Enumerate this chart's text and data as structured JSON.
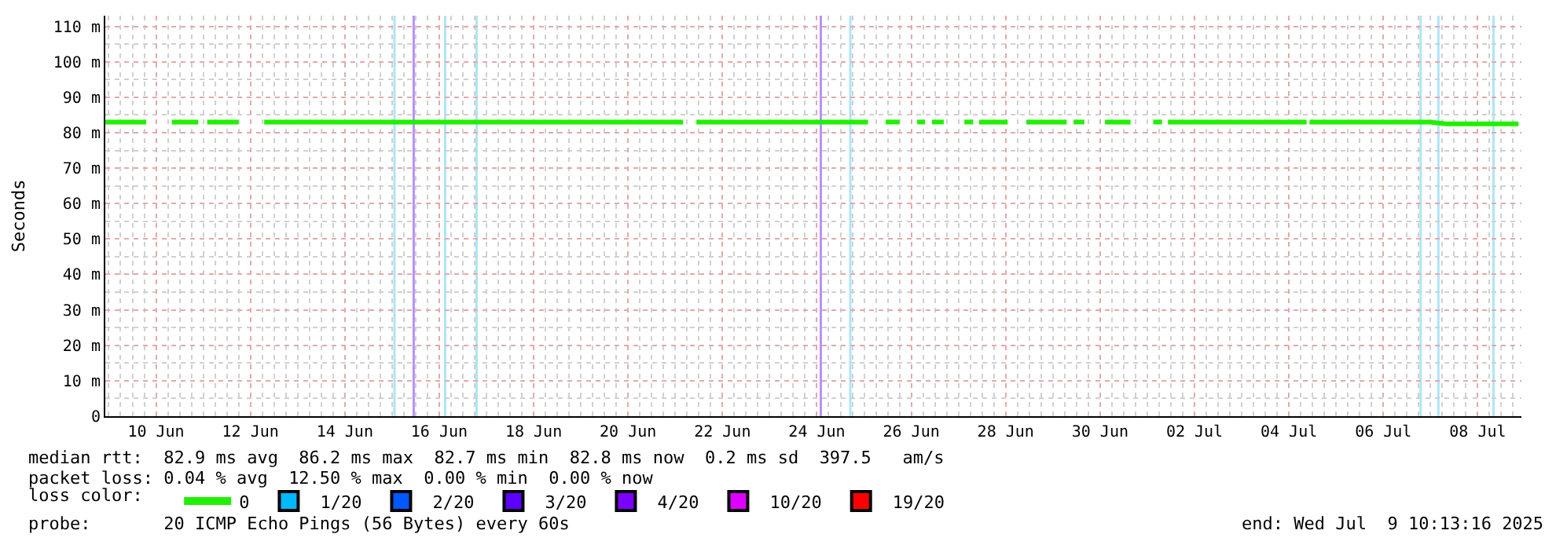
{
  "chart_data": {
    "type": "line",
    "ylabel": "Seconds",
    "xlim": [
      "2025-06-09T10:13",
      "2025-07-09T10:13"
    ],
    "xticks": [
      {
        "value": "2025-06-10T12:00",
        "label": "10 Jun"
      },
      {
        "value": "2025-06-12T12:00",
        "label": "12 Jun"
      },
      {
        "value": "2025-06-14T12:00",
        "label": "14 Jun"
      },
      {
        "value": "2025-06-16T12:00",
        "label": "16 Jun"
      },
      {
        "value": "2025-06-18T12:00",
        "label": "18 Jun"
      },
      {
        "value": "2025-06-20T12:00",
        "label": "20 Jun"
      },
      {
        "value": "2025-06-22T12:00",
        "label": "22 Jun"
      },
      {
        "value": "2025-06-24T12:00",
        "label": "24 Jun"
      },
      {
        "value": "2025-06-26T12:00",
        "label": "26 Jun"
      },
      {
        "value": "2025-06-28T12:00",
        "label": "28 Jun"
      },
      {
        "value": "2025-06-30T12:00",
        "label": "30 Jun"
      },
      {
        "value": "2025-07-02T12:00",
        "label": "02 Jul"
      },
      {
        "value": "2025-07-04T12:00",
        "label": "04 Jul"
      },
      {
        "value": "2025-07-06T12:00",
        "label": "06 Jul"
      },
      {
        "value": "2025-07-08T12:00",
        "label": "08 Jul"
      }
    ],
    "ylim": [
      0,
      113
    ],
    "yticks": [
      0,
      {
        "value": 10,
        "label": "10 m"
      },
      {
        "value": 20,
        "label": "20 m"
      },
      {
        "value": 30,
        "label": "30 m"
      },
      {
        "value": 40,
        "label": "40 m"
      },
      {
        "value": 50,
        "label": "50 m"
      },
      {
        "value": 60,
        "label": "60 m"
      },
      {
        "value": 70,
        "label": "70 m"
      },
      {
        "value": 80,
        "label": "80 m"
      },
      {
        "value": 90,
        "label": "90 m"
      },
      {
        "value": 100,
        "label": "100 m"
      },
      {
        "value": 110,
        "label": "110 m"
      }
    ],
    "grid": true,
    "legend": "bottom",
    "legend_title": "loss color:",
    "marker": "none",
    "line_style": "solid",
    "series": [
      {
        "name": "0",
        "color": "#20f000",
        "x": [
          "2025-06-09T10:15",
          "2025-06-10T07:00",
          "2025-06-10T14:00",
          "2025-06-10T20:00",
          "2025-06-11T09:30",
          "2025-06-11T12:00",
          "2025-06-11T14:00",
          "2025-06-12T06:00",
          "2025-06-12T12:00",
          "2025-06-12T19:00",
          "2025-06-21T16:00",
          "2025-06-21T20:00",
          "2025-06-21T22:45",
          "2025-06-25T14:00",
          "2025-06-25T18:00",
          "2025-06-25T23:00",
          "2025-06-26T06:00",
          "2025-06-26T12:00",
          "2025-06-26T15:00",
          "2025-06-26T19:00",
          "2025-06-26T20:00",
          "2025-06-26T22:30",
          "2025-06-27T04:30",
          "2025-06-27T10:00",
          "2025-06-27T15:00",
          "2025-06-27T19:30",
          "2025-06-27T20:00",
          "2025-06-27T22:30",
          "2025-06-28T13:00",
          "2025-06-28T18:00",
          "2025-06-28T22:30",
          "2025-06-29T19:00",
          "2025-06-29T21:00",
          "2025-06-29T22:30",
          "2025-06-30T04:00",
          "2025-06-30T10:00",
          "2025-06-30T14:30",
          "2025-07-01T03:30",
          "2025-07-01T10:00",
          "2025-07-01T15:00",
          "2025-07-01T19:30",
          "2025-07-01T20:00",
          "2025-07-01T22:30",
          "2025-07-04T21:00",
          "2025-07-04T22:00",
          "2025-07-04T22:30",
          "2025-07-07T12:00",
          "2025-07-07T20:00",
          "2025-07-09T08:45"
        ],
        "values": [
          83,
          83,
          null,
          83,
          83,
          null,
          83,
          83,
          null,
          83,
          83,
          null,
          83,
          83,
          null,
          83,
          83,
          null,
          83,
          83,
          null,
          83,
          83,
          null,
          83,
          83,
          null,
          83,
          83,
          null,
          83,
          83,
          null,
          83,
          83,
          null,
          83,
          83,
          null,
          83,
          83,
          null,
          83,
          83,
          null,
          83,
          83,
          82.5,
          82.5
        ]
      },
      {
        "name": "1/20",
        "color": "#00b8ff"
      },
      {
        "name": "2/20",
        "color": "#0059ff"
      },
      {
        "name": "3/20",
        "color": "#5e00ff"
      },
      {
        "name": "4/20",
        "color": "#7e00ff"
      },
      {
        "name": "10/20",
        "color": "#dd00ff"
      },
      {
        "name": "19/20",
        "color": "#ff0000"
      }
    ],
    "ref_lines": [
      {
        "axis": "x",
        "value": "2025-06-15T13:15",
        "color": "#aee4f8"
      },
      {
        "axis": "x",
        "value": "2025-06-15T23:00",
        "color": "#b890ff"
      },
      {
        "axis": "x",
        "value": "2025-06-16T15:00",
        "color": "#aee4f8"
      },
      {
        "axis": "x",
        "value": "2025-06-17T07:00",
        "color": "#aee4f8"
      },
      {
        "axis": "x",
        "value": "2025-06-24T14:00",
        "color": "#b890ff"
      },
      {
        "axis": "x",
        "value": "2025-06-25T05:00",
        "color": "#aee4f8"
      },
      {
        "axis": "x",
        "value": "2025-07-07T07:00",
        "color": "#aee4f8"
      },
      {
        "axis": "x",
        "value": "2025-07-07T16:00",
        "color": "#aee4f8"
      },
      {
        "axis": "x",
        "value": "2025-07-08T20:00",
        "color": "#aee4f8"
      }
    ],
    "annotations": [
      "median rtt:  82.9 ms avg  86.2 ms max  82.7 ms min  82.8 ms now  0.2 ms sd  397.5   am/s",
      "packet loss: 0.04 % avg  12.50 % max  0.00 % min  0.00 % now",
      "probe:       20 ICMP Echo Pings (56 Bytes) every 60s",
      "end: Wed Jul  9 10:13:16 2025"
    ]
  }
}
